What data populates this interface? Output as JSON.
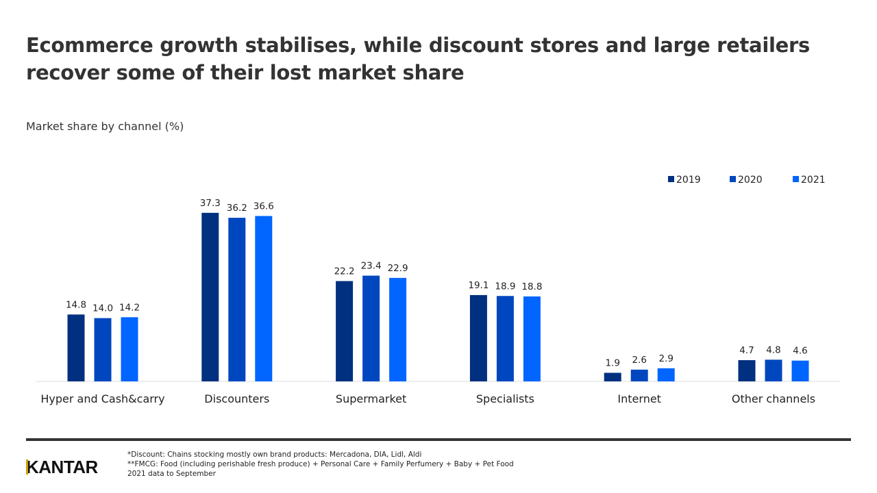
{
  "chart_data": {
    "type": "bar",
    "title": "Ecommerce growth stabilises, while discount stores and large retailers recover some of their lost market share",
    "subtitle": "Market share by channel (%)",
    "categories": [
      "Hyper and Cash&carry",
      "Discounters",
      "Supermarket",
      "Specialists",
      "Internet",
      "Other channels"
    ],
    "series": [
      {
        "name": "2019",
        "color": "#00307f",
        "values": [
          14.8,
          37.3,
          22.2,
          19.1,
          1.9,
          4.7
        ]
      },
      {
        "name": "2020",
        "color": "#0047bf",
        "values": [
          14.0,
          36.2,
          23.4,
          18.9,
          2.6,
          4.8
        ]
      },
      {
        "name": "2021",
        "color": "#0066ff",
        "values": [
          14.2,
          36.6,
          22.9,
          18.8,
          2.9,
          4.6
        ]
      }
    ],
    "ylim": [
      0,
      40
    ],
    "grid": false,
    "legend_position": "top-right",
    "data_labels": true
  },
  "footer": {
    "logo": "KANTAR",
    "notes": [
      "*Discount: Chains stocking mostly own brand products: Mercadona, DIA, Lidl, Aldi",
      "**FMCG: Food (including  perishable fresh produce) + Personal Care + Family Perfumery + Baby + Pet Food",
      "2021 data to September"
    ]
  }
}
